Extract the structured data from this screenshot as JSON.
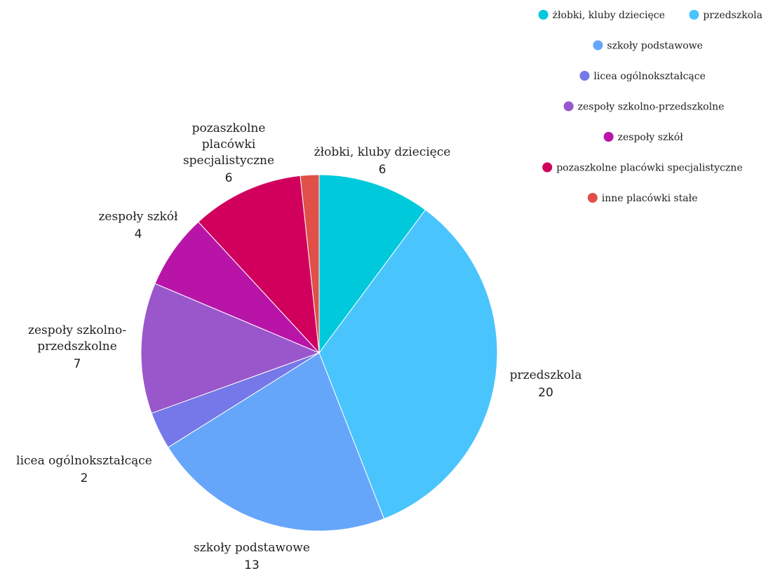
{
  "chart_data": {
    "type": "pie",
    "title": "",
    "slices": [
      {
        "label": "żłobki, kluby dziecięce",
        "value": 6,
        "color": "#00c9db",
        "label_lines": [
          "żłobki, kluby dziecięce"
        ]
      },
      {
        "label": "przedszkola",
        "value": 20,
        "color": "#4ac4fc",
        "label_lines": [
          "przedszkola"
        ]
      },
      {
        "label": "szkoły podstawowe",
        "value": 13,
        "color": "#66a6fa",
        "label_lines": [
          "szkoły podstawowe"
        ]
      },
      {
        "label": "licea ogólnokształcące",
        "value": 2,
        "color": "#7578e8",
        "label_lines": [
          "licea ogólnokształcące"
        ]
      },
      {
        "label": "zespoły szkolno-przedszkolne",
        "value": 7,
        "color": "#9a57cc",
        "label_lines": [
          "zespoły szkolno-",
          "przedszkolne"
        ]
      },
      {
        "label": "zespoły szkół",
        "value": 4,
        "color": "#b815a8",
        "label_lines": [
          "zespoły szkół"
        ]
      },
      {
        "label": "pozaszkolne placówki specjalistyczne",
        "value": 6,
        "color": "#d0005c",
        "label_lines": [
          "pozaszkolne",
          "placówki",
          "specjalistyczne"
        ]
      },
      {
        "label": "inne placówki stałe",
        "value": 1,
        "color": "#e04f48",
        "label_lines": []
      }
    ],
    "legend": {
      "placement": "top-right",
      "rows": [
        [
          "żłobki, kluby dziecięce",
          "przedszkola"
        ],
        [
          "szkoły podstawowe"
        ],
        [
          "licea ogólnokształcące"
        ],
        [
          "zespoły szkolno-przedszkolne"
        ],
        [
          "zespoły szkół"
        ],
        [
          "pozaszkolne placówki specjalistyczne"
        ],
        [
          "inne placówki stałe"
        ]
      ]
    }
  }
}
